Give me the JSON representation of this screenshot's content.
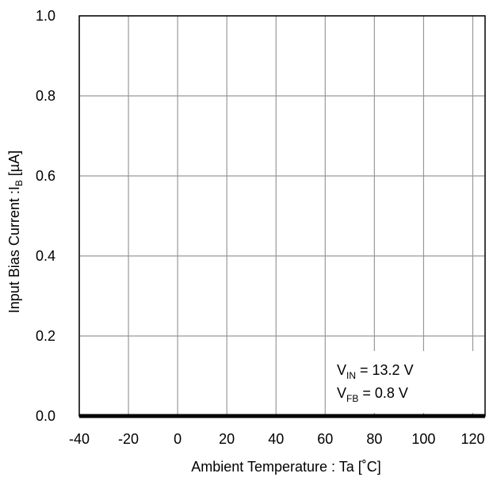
{
  "chart_data": {
    "type": "line",
    "title": "",
    "xlabel": "Ambient Temperature : Ta [˚C]",
    "ylabel": {
      "main": "Input Bias Current :I",
      "sub": "B",
      "unit": " [µA]"
    },
    "xlim": [
      -40,
      125
    ],
    "ylim": [
      0,
      1.0
    ],
    "x_ticks": [
      -40,
      -20,
      0,
      20,
      40,
      60,
      80,
      100,
      120
    ],
    "x_tick_labels": [
      "-40",
      "-20",
      "0",
      "20",
      "40",
      "60",
      "80",
      "100",
      "120"
    ],
    "y_ticks": [
      0,
      0.2,
      0.4,
      0.6,
      0.8,
      1.0
    ],
    "y_tick_labels": [
      "0.0",
      "0.2",
      "0.4",
      "0.6",
      "0.8",
      "1.0"
    ],
    "grid": true,
    "series": [
      {
        "x": [
          -40,
          -20,
          0,
          20,
          40,
          60,
          80,
          100,
          125
        ],
        "values": [
          0,
          0,
          0,
          0,
          0,
          0,
          0,
          0,
          0
        ],
        "color": "#000000"
      }
    ],
    "annotations": [
      {
        "main": "V",
        "sub": "IN",
        "rest": " = 13.2 V"
      },
      {
        "main": "V",
        "sub": "FB",
        "rest": " = 0.8 V"
      }
    ]
  }
}
